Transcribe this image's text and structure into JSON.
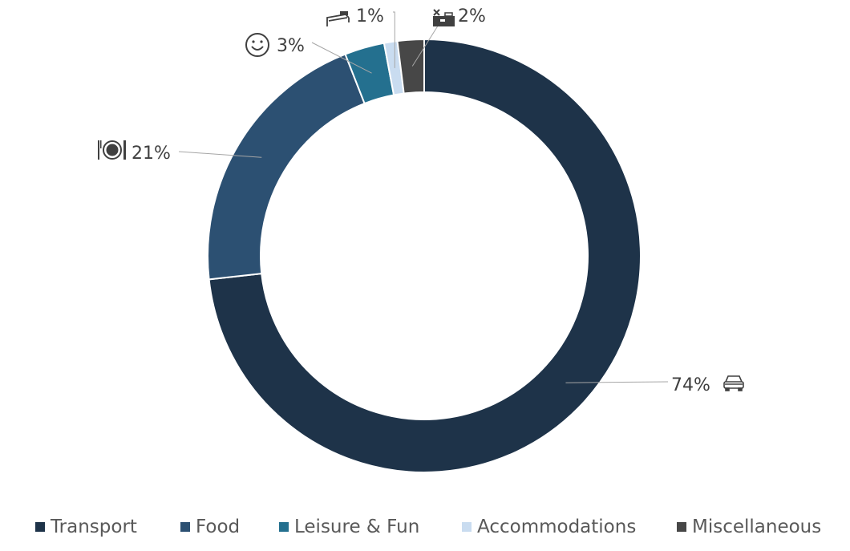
{
  "chart_data": {
    "type": "donut",
    "categories": [
      "Transport",
      "Food",
      "Leisure & Fun",
      "Accommodations",
      "Miscellaneous"
    ],
    "values": [
      74,
      21,
      3,
      1,
      2
    ],
    "data_labels": [
      "74%",
      "21%",
      "3%",
      "1%",
      "2%"
    ],
    "colors": [
      "#1e3349",
      "#2c5072",
      "#24708f",
      "#c9dcf0",
      "#474747"
    ],
    "icons": [
      "car-icon",
      "plate-cutlery-icon",
      "smiley-icon",
      "bed-icon",
      "toolbox-icon"
    ],
    "legend_position": "bottom",
    "title": ""
  },
  "legend": {
    "items": [
      {
        "label": "Transport",
        "color": "#1e3349"
      },
      {
        "label": "Food",
        "color": "#2c5072"
      },
      {
        "label": "Leisure & Fun",
        "color": "#24708f"
      },
      {
        "label": "Accommodations",
        "color": "#c9dcf0"
      },
      {
        "label": "Miscellaneous",
        "color": "#474747"
      }
    ]
  }
}
